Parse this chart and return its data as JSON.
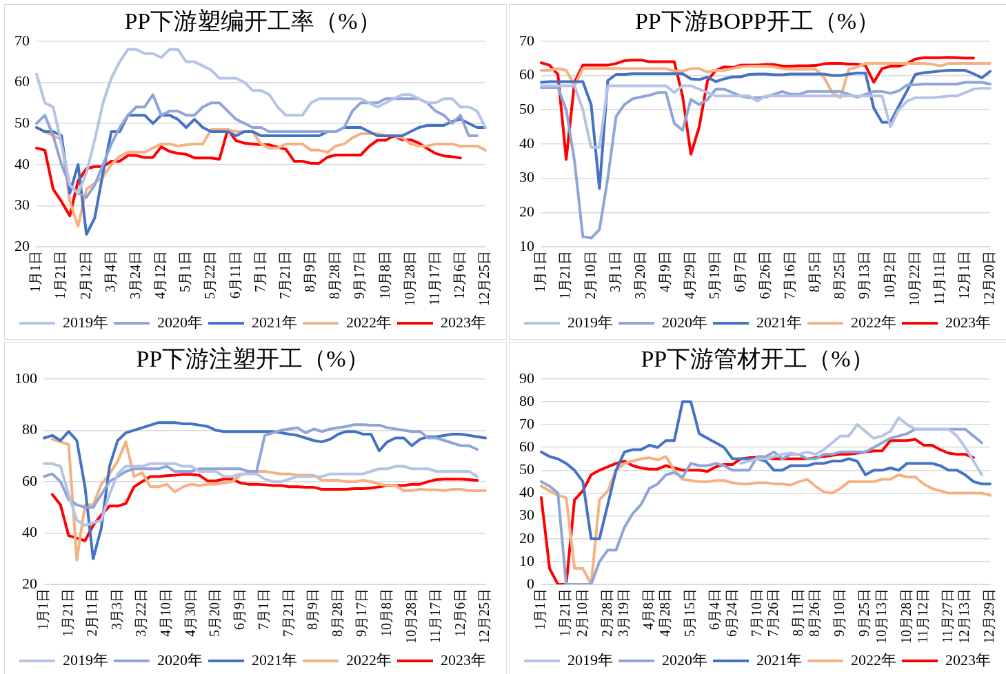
{
  "chart_data": [
    {
      "type": "line",
      "title": "PP下游塑编开工率（%）",
      "grid": "y",
      "legend": "bottom",
      "marker": "none",
      "line_style": "solid",
      "ylim": [
        20,
        70
      ],
      "yticks": [
        20,
        30,
        40,
        50,
        60,
        70
      ],
      "categories": [
        "1月1日",
        null,
        null,
        "1月21日",
        null,
        null,
        "2月12日",
        null,
        null,
        "3月4日",
        null,
        null,
        "3月24日",
        null,
        null,
        "4月12日",
        null,
        null,
        "5月1日",
        null,
        null,
        "5月22日",
        null,
        null,
        "6月11日",
        null,
        null,
        "7月1日",
        null,
        null,
        "7月21日",
        null,
        null,
        "8月9日",
        null,
        null,
        "8月28日",
        null,
        null,
        "9月17日",
        null,
        null,
        "10月8日",
        null,
        null,
        "10月28日",
        null,
        null,
        "11月17日",
        null,
        null,
        "12月6日",
        null,
        null,
        "12月25日"
      ],
      "series": [
        {
          "name": "2019年",
          "color": "#b4c3e6",
          "values": [
            62,
            55,
            54,
            45,
            35,
            33,
            38,
            46,
            55,
            61,
            65,
            68,
            68,
            67,
            67,
            66,
            68,
            68,
            65,
            65,
            64,
            63,
            61,
            61,
            61,
            60,
            58,
            58,
            57,
            54,
            52,
            52,
            52,
            55,
            56,
            56,
            56,
            56,
            56,
            56,
            55,
            54,
            55,
            56,
            57,
            57,
            56,
            55,
            55,
            56,
            56,
            54,
            54,
            53,
            49
          ]
        },
        {
          "name": "2020年",
          "color": "#8fa5d8",
          "values": [
            50,
            52,
            47,
            40,
            35,
            33,
            32,
            35,
            40,
            45,
            49,
            52,
            54,
            54,
            57,
            52,
            53,
            53,
            52,
            52,
            54,
            55,
            55,
            53,
            51,
            50,
            49,
            49,
            48,
            48,
            48,
            48,
            48,
            48,
            48,
            48,
            48,
            49,
            53,
            55,
            55,
            55,
            56,
            56,
            56,
            56,
            56,
            55,
            53,
            52,
            50,
            52,
            47,
            47,
            null
          ]
        },
        {
          "name": "2021年",
          "color": "#4472c4",
          "values": [
            49,
            48,
            48,
            47,
            33,
            40,
            23,
            27,
            38,
            48,
            48,
            52,
            52,
            52,
            50,
            52,
            52,
            51,
            49,
            51,
            49,
            48,
            48,
            48,
            47,
            48,
            48,
            47,
            47,
            47,
            47,
            47,
            47,
            47,
            47,
            48,
            48,
            49,
            49,
            49,
            48,
            47,
            47,
            47,
            47,
            48,
            49,
            49.5,
            49.5,
            49.5,
            50.5,
            51,
            50,
            49,
            49
          ]
        },
        {
          "name": "2022年",
          "color": "#f4b183",
          "values": [
            49,
            48,
            47,
            46,
            31,
            25,
            34,
            35.5,
            37,
            40,
            42,
            43,
            43,
            43,
            44,
            45,
            45,
            44.5,
            44.8,
            45,
            45,
            48.5,
            48.5,
            48.5,
            48,
            48,
            48,
            45,
            44,
            44,
            45,
            45,
            45,
            43.5,
            43.5,
            43,
            44.5,
            45,
            46.5,
            47.5,
            47.5,
            47.5,
            47,
            47,
            46.5,
            45,
            44.5,
            44.5,
            45,
            45,
            45,
            44.5,
            44.5,
            44.5,
            43.5
          ]
        },
        {
          "name": "2023年",
          "color": "#ff0000",
          "values": [
            44,
            43.5,
            34,
            31,
            27.5,
            36,
            39,
            39.5,
            39.5,
            40.8,
            40.8,
            42.2,
            42.2,
            41.7,
            41.7,
            44.3,
            43.2,
            42.7,
            42.5,
            41.6,
            41.6,
            41.6,
            41.3,
            48.5,
            45.8,
            45.2,
            45,
            44.8,
            44.8,
            44.2,
            43.7,
            40.8,
            40.8,
            40.3,
            40.3,
            41.8,
            42.3,
            42.3,
            42.3,
            42.3,
            44.4,
            45.9,
            45.9,
            47,
            46,
            46,
            45.2,
            43.9,
            42.7,
            42.1,
            41.9,
            41.6,
            null,
            null,
            null
          ]
        }
      ]
    },
    {
      "type": "line",
      "title": "PP下游BOPP开工（%）",
      "grid": "y",
      "legend": "bottom",
      "marker": "none",
      "line_style": "solid",
      "ylim": [
        10,
        70
      ],
      "yticks": [
        10,
        20,
        30,
        40,
        50,
        60,
        70
      ],
      "categories": [
        "1月1日",
        null,
        null,
        "1月21日",
        null,
        null,
        "2月10日",
        null,
        null,
        "3月1日",
        null,
        null,
        "3月20日",
        null,
        null,
        "4月9日",
        null,
        null,
        "4月29日",
        null,
        null,
        "5月19日",
        null,
        null,
        "6月7日",
        null,
        null,
        "6月26日",
        null,
        null,
        "7月16日",
        null,
        null,
        "8月5日",
        null,
        null,
        "8月25日",
        null,
        null,
        "9月13日",
        null,
        null,
        "10月2日",
        null,
        null,
        "10月22日",
        null,
        null,
        "11月11日",
        null,
        null,
        "12月1日",
        null,
        null,
        "12月20日"
      ],
      "series": [
        {
          "name": "2019年",
          "color": "#b4c3e6",
          "values": [
            57,
            57,
            57,
            57,
            57,
            50,
            39,
            39,
            57,
            57,
            57,
            57,
            57,
            57,
            57,
            57,
            55,
            57,
            57,
            56,
            55,
            54,
            54,
            54,
            54,
            54,
            52.5,
            54,
            54,
            54,
            54,
            54,
            54,
            54,
            54,
            54,
            54,
            54,
            54,
            54,
            54,
            54,
            45,
            50,
            52.5,
            53.5,
            53.5,
            53.5,
            53.7,
            54,
            54,
            55,
            56,
            56.3,
            56.3
          ]
        },
        {
          "name": "2020年",
          "color": "#8fa5d8",
          "values": [
            56.5,
            56.5,
            56.5,
            50,
            35,
            13,
            12.5,
            15,
            30,
            48,
            51.5,
            53.2,
            53.7,
            54.2,
            55,
            55,
            46,
            44,
            53,
            51.5,
            53,
            56,
            56,
            55,
            54,
            53.5,
            53.5,
            53.7,
            54.5,
            55.3,
            54.5,
            54.5,
            55.3,
            55.3,
            55.3,
            55.3,
            55.3,
            54.5,
            53.7,
            54.5,
            55.3,
            55.3,
            54.8,
            55.5,
            57.2,
            57.3,
            57.5,
            57.5,
            57.5,
            57.5,
            57.5,
            58,
            58,
            58,
            57.5
          ]
        },
        {
          "name": "2021年",
          "color": "#4472c4",
          "values": [
            58,
            58.2,
            58.2,
            58.2,
            58.2,
            58.2,
            51.5,
            27,
            58.5,
            60.3,
            60.3,
            60.5,
            60.5,
            60.5,
            60.5,
            60.5,
            60.5,
            60.5,
            59,
            58.8,
            59.5,
            58.2,
            59,
            59.6,
            59.6,
            60.3,
            60.4,
            60.4,
            60.2,
            60.2,
            60.4,
            60.4,
            60.4,
            60.4,
            60.4,
            60,
            60,
            60.4,
            60.7,
            60.7,
            50.5,
            46.3,
            46.3,
            51,
            55.5,
            60.3,
            60.8,
            61,
            61.3,
            61.5,
            61.5,
            61.5,
            60.5,
            59.3,
            61.2
          ]
        },
        {
          "name": "2022年",
          "color": "#f4b183",
          "values": [
            61.5,
            61.5,
            62,
            61.5,
            57,
            62,
            62,
            62,
            62,
            62,
            62,
            62,
            62,
            62,
            62,
            62,
            61.3,
            61.3,
            62,
            62,
            61,
            61.5,
            61.5,
            62,
            62.5,
            62.7,
            62.7,
            62.7,
            62.5,
            62,
            61.8,
            61.8,
            61.8,
            61.8,
            59.5,
            55,
            53.5,
            61.8,
            62.5,
            63.5,
            63.5,
            63.5,
            63.5,
            63.5,
            63.5,
            63.5,
            63.5,
            63.3,
            62.8,
            63.5,
            63.5,
            63.5,
            63.5,
            63.5,
            63.5
          ]
        },
        {
          "name": "2023年",
          "color": "#ff0000",
          "values": [
            63.7,
            63,
            60.3,
            35.5,
            58,
            63,
            63,
            63,
            63,
            63.5,
            64.3,
            64.5,
            64.5,
            64,
            64,
            64,
            64,
            54,
            37,
            45,
            58.5,
            61.5,
            62.5,
            62.3,
            63,
            63,
            63,
            63.2,
            63.2,
            62.7,
            62.7,
            62.8,
            62.8,
            62.9,
            63.4,
            63.5,
            63.5,
            63.3,
            63.3,
            62.9,
            58,
            62,
            62.7,
            62.7,
            63.5,
            64.8,
            65.2,
            65.2,
            65.2,
            65.3,
            65.2,
            65.1,
            65.1,
            null,
            null
          ]
        }
      ]
    },
    {
      "type": "line",
      "title": "PP下游注塑开工（%）",
      "grid": "y",
      "legend": "bottom",
      "marker": "none",
      "line_style": "solid",
      "ylim": [
        20,
        100
      ],
      "yticks": [
        20,
        40,
        60,
        80,
        100
      ],
      "categories": [
        "1月1日",
        null,
        null,
        "1月21日",
        null,
        null,
        "2月11日",
        null,
        null,
        "3月3日",
        null,
        null,
        "3月22日",
        null,
        null,
        "4月10日",
        null,
        null,
        "4月30日",
        null,
        null,
        "5月20日",
        null,
        null,
        "6月9日",
        null,
        null,
        "7月1日",
        null,
        null,
        "7月21日",
        null,
        null,
        "8月9日",
        null,
        null,
        "8月28日",
        null,
        null,
        "9月17日",
        null,
        null,
        "10月8日",
        null,
        null,
        "10月28日",
        null,
        null,
        "11月17日",
        null,
        null,
        "12月6日",
        null,
        null,
        "12月25日"
      ],
      "series": [
        {
          "name": "2019年",
          "color": "#b4c3e6",
          "values": [
            67,
            67,
            66,
            55,
            45,
            43,
            44,
            45,
            55,
            63,
            66,
            66,
            66,
            67,
            67,
            67,
            67,
            66,
            66,
            64,
            64,
            64,
            62,
            62,
            63,
            63,
            63,
            61,
            60,
            60,
            61,
            62,
            62,
            62,
            62,
            63,
            63,
            63,
            63,
            63,
            64,
            65,
            65,
            66,
            66,
            65,
            65,
            65,
            64,
            64,
            64,
            64,
            64,
            62,
            null
          ]
        },
        {
          "name": "2020年",
          "color": "#8fa5d8",
          "values": [
            62,
            63,
            60,
            53,
            51,
            50,
            50,
            55,
            60,
            62,
            64,
            65,
            65,
            65,
            65,
            66,
            64,
            64,
            64,
            65,
            65,
            65,
            65,
            65,
            65,
            64,
            64,
            78,
            79,
            80,
            80.5,
            81,
            79,
            80.5,
            79.5,
            80.5,
            81,
            81.5,
            82.2,
            82.2,
            82,
            82,
            81,
            80.5,
            80,
            79.5,
            79.5,
            77,
            77,
            76,
            75,
            74,
            74,
            72.5,
            null
          ]
        },
        {
          "name": "2021年",
          "color": "#4472c4",
          "values": [
            77,
            78,
            76,
            79.5,
            76,
            58,
            30,
            42,
            66,
            76,
            79,
            80,
            81,
            82,
            83,
            83,
            83,
            82.5,
            82.5,
            82,
            81.5,
            80,
            79.5,
            79.5,
            79.5,
            79.5,
            79.5,
            79.5,
            79.5,
            79,
            78.5,
            78,
            77,
            76,
            75.5,
            76.5,
            78.5,
            79.5,
            79.5,
            78.5,
            78.5,
            72,
            75.5,
            77,
            77,
            74,
            76.5,
            77.5,
            77.5,
            78,
            78.5,
            78.5,
            78,
            77.5,
            77
          ]
        },
        {
          "name": "2022年",
          "color": "#f4b183",
          "values": [
            null,
            76.5,
            75.5,
            74.5,
            29.5,
            51,
            51,
            59,
            63,
            68,
            75.5,
            62,
            63.5,
            58,
            58,
            59,
            56,
            58,
            59,
            58.5,
            59,
            59,
            59.5,
            60,
            62.5,
            63.5,
            64,
            64,
            63.5,
            63,
            63,
            62.5,
            62.5,
            62.5,
            60.5,
            60.5,
            60.5,
            60,
            60,
            60.5,
            60,
            59,
            58.5,
            58.5,
            56.5,
            56.5,
            57,
            56.8,
            56.8,
            56.5,
            57,
            57,
            56.5,
            56.5,
            56.5
          ]
        },
        {
          "name": "2023年",
          "color": "#ff0000",
          "values": [
            null,
            55,
            51,
            39,
            38,
            37,
            43,
            47,
            50.5,
            50.5,
            51.5,
            58,
            60,
            62,
            62,
            62.3,
            62.5,
            62.8,
            62.8,
            62.5,
            60.3,
            60.3,
            61,
            61,
            59.5,
            59,
            59,
            58.8,
            58.5,
            58.5,
            58,
            58,
            57.8,
            57.8,
            57,
            57,
            57,
            57,
            57.3,
            57.3,
            57.5,
            58,
            58.5,
            58.5,
            58.5,
            59,
            59,
            60,
            60.8,
            61,
            61,
            61,
            60.8,
            60.5,
            null
          ]
        }
      ]
    },
    {
      "type": "line",
      "title": "PP下游管材开工（%）",
      "grid": "y",
      "legend": "bottom",
      "marker": "none",
      "line_style": "solid",
      "ylim": [
        0,
        90
      ],
      "yticks": [
        0,
        10,
        20,
        30,
        40,
        50,
        60,
        70,
        80,
        90
      ],
      "categories": [
        "1月1日",
        null,
        null,
        "1月21日",
        null,
        "2月10日",
        null,
        null,
        "2月28日",
        null,
        "3月19日",
        null,
        null,
        "4月8日",
        null,
        "4月28日",
        null,
        null,
        "5月15日",
        null,
        null,
        "6月4日",
        null,
        "6月24日",
        null,
        null,
        "7月10日",
        null,
        "7月26日",
        null,
        null,
        "8月11日",
        null,
        "8月26日",
        null,
        null,
        "9月10日",
        null,
        null,
        "9月25日",
        null,
        "10月13日",
        null,
        null,
        "10月28日",
        null,
        "11月12日",
        null,
        null,
        "11月27日",
        null,
        "12月13日",
        null,
        null,
        "12月29日"
      ],
      "series": [
        {
          "name": "2019年",
          "color": "#b4c3e6",
          "values": [
            null,
            null,
            null,
            null,
            null,
            null,
            null,
            null,
            null,
            null,
            null,
            null,
            null,
            null,
            null,
            null,
            null,
            null,
            null,
            null,
            null,
            null,
            null,
            null,
            53,
            54,
            55,
            55,
            56,
            57,
            57.5,
            57,
            58,
            57,
            59,
            62,
            65,
            65,
            70,
            67,
            64,
            65,
            67,
            73,
            70,
            68,
            68,
            68,
            68,
            68,
            65,
            60,
            54,
            48,
            null
          ]
        },
        {
          "name": "2020年",
          "color": "#8fa5d8",
          "values": [
            45,
            43,
            40,
            0,
            0,
            0,
            0,
            10,
            15,
            15,
            25,
            31,
            35,
            42,
            44,
            48,
            49,
            47,
            53,
            52,
            52,
            53,
            52,
            50,
            50,
            50,
            56,
            56,
            58,
            55,
            57,
            57,
            55,
            55,
            57,
            57,
            58,
            58,
            58,
            58,
            60,
            62,
            64,
            65,
            66,
            68,
            68,
            68,
            68,
            68,
            68,
            68,
            65,
            62,
            null
          ]
        },
        {
          "name": "2021年",
          "color": "#4472c4",
          "values": [
            58,
            56,
            55,
            53,
            50,
            45,
            20,
            20,
            35,
            50,
            58,
            59,
            59,
            61,
            60,
            63,
            63,
            80,
            80,
            66,
            64,
            62,
            60,
            55,
            55,
            55,
            55,
            54,
            50,
            50,
            52,
            52,
            52,
            53,
            53,
            54,
            54,
            55,
            54,
            48,
            50,
            50,
            51,
            50,
            53,
            53,
            53,
            53,
            52,
            50,
            50,
            48,
            45,
            44,
            44
          ]
        },
        {
          "name": "2022年",
          "color": "#f4b183",
          "values": [
            43,
            41,
            39,
            38,
            7,
            7,
            0,
            37,
            41,
            50,
            53,
            54,
            55,
            55.5,
            54.5,
            56,
            50,
            46,
            45.5,
            45,
            45,
            45.5,
            45.5,
            44.5,
            44,
            44,
            44.5,
            44.5,
            44,
            44,
            43.5,
            45,
            46,
            43,
            40.5,
            40,
            42,
            45,
            45,
            45,
            45,
            46,
            46,
            48,
            47,
            47,
            44,
            42,
            41,
            40,
            40,
            40,
            40,
            40,
            39
          ]
        },
        {
          "name": "2023年",
          "color": "#ff0000",
          "values": [
            38,
            7,
            0,
            0,
            37,
            41,
            48,
            50,
            51.5,
            53,
            54,
            52,
            51,
            50.5,
            50.5,
            52,
            51,
            50,
            50,
            50,
            49.5,
            51.5,
            52.5,
            52.5,
            55,
            55.5,
            55.5,
            55.5,
            55,
            55,
            55,
            55,
            55,
            55.5,
            56,
            56.5,
            57,
            57,
            57.5,
            58,
            58.5,
            58.5,
            63,
            63,
            63,
            63.5,
            61,
            61,
            59,
            57.5,
            57,
            57,
            55.5,
            null,
            null
          ]
        }
      ]
    }
  ]
}
